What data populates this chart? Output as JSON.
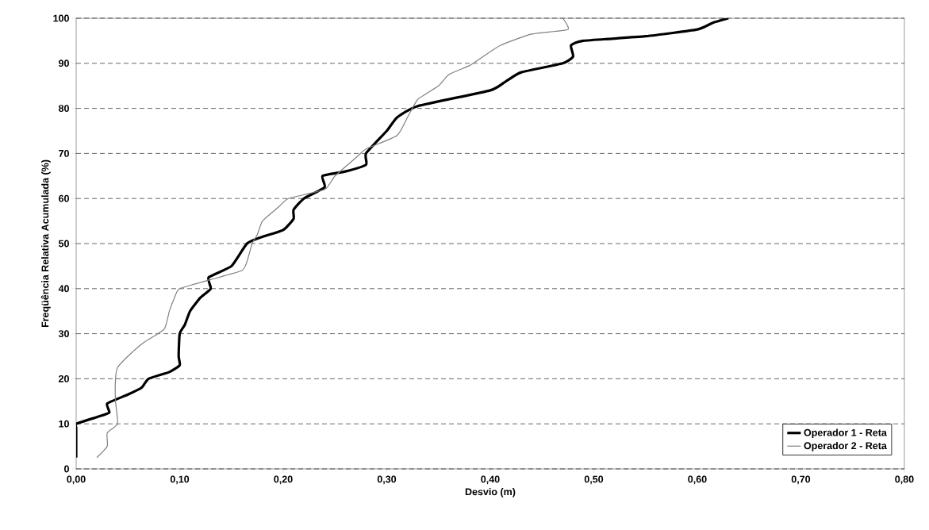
{
  "chart_data": {
    "type": "line",
    "xlabel": "Desvio (m)",
    "ylabel": "Freqüência Relativa Acumulada (%)",
    "xlim": [
      0,
      0.8
    ],
    "ylim": [
      0,
      100
    ],
    "xticks": [
      {
        "value": 0,
        "label": "0,00"
      },
      {
        "value": 0.1,
        "label": "0,10"
      },
      {
        "value": 0.2,
        "label": "0,20"
      },
      {
        "value": 0.3,
        "label": "0,30"
      },
      {
        "value": 0.4,
        "label": "0,40"
      },
      {
        "value": 0.5,
        "label": "0,50"
      },
      {
        "value": 0.6,
        "label": "0,60"
      },
      {
        "value": 0.7,
        "label": "0,70"
      },
      {
        "value": 0.8,
        "label": "0,80"
      }
    ],
    "yticks": [
      0,
      10,
      20,
      30,
      40,
      50,
      60,
      70,
      80,
      90,
      100
    ],
    "grid": "y",
    "legend": "bottom right",
    "marker": "none",
    "line_style": "solid",
    "series": [
      {
        "name": "Operador 1 - Reta",
        "color": "#000000",
        "x": [
          0,
          0,
          0,
          0.02,
          0.032,
          0.03,
          0.05,
          0.063,
          0.07,
          0.09,
          0.1,
          0.099,
          0.1,
          0.105,
          0.11,
          0.12,
          0.13,
          0.128,
          0.15,
          0.165,
          0.18,
          0.2,
          0.21,
          0.21,
          0.22,
          0.24,
          0.238,
          0.26,
          0.28,
          0.28,
          0.3,
          0.31,
          0.33,
          0.4,
          0.415,
          0.43,
          0.47,
          0.48,
          0.478,
          0.49,
          0.55,
          0.6,
          0.615,
          0.63
        ],
        "values": [
          2.5,
          9,
          10,
          11.5,
          12.5,
          14.5,
          16.5,
          18,
          20,
          21.5,
          23,
          25,
          30,
          32,
          35,
          38,
          40,
          42.5,
          45,
          50,
          51.5,
          53,
          55.5,
          57.5,
          60,
          62.5,
          65,
          66,
          67.5,
          70,
          75,
          78,
          80.5,
          84,
          86,
          88,
          90,
          91.5,
          94,
          95,
          96,
          97.5,
          99,
          100
        ]
      },
      {
        "name": "Operador 2 - Reta",
        "color": "#808080",
        "x": [
          0.02,
          0.03,
          0.03,
          0.04,
          0.038,
          0.038,
          0.04,
          0.05,
          0.065,
          0.085,
          0.09,
          0.095,
          0.1,
          0.13,
          0.16,
          0.165,
          0.17,
          0.175,
          0.18,
          0.195,
          0.205,
          0.24,
          0.25,
          0.27,
          0.28,
          0.31,
          0.32,
          0.33,
          0.35,
          0.36,
          0.38,
          0.39,
          0.41,
          0.44,
          0.475,
          0.47
        ],
        "values": [
          2.5,
          5,
          8,
          10,
          15,
          20,
          22.5,
          25,
          28,
          31,
          35,
          38,
          40,
          42,
          44,
          46,
          50,
          52,
          55,
          58,
          60,
          62,
          65,
          69,
          71,
          74,
          78,
          82,
          85,
          87.5,
          89.5,
          91,
          94,
          96.5,
          97.5,
          100
        ]
      }
    ]
  }
}
